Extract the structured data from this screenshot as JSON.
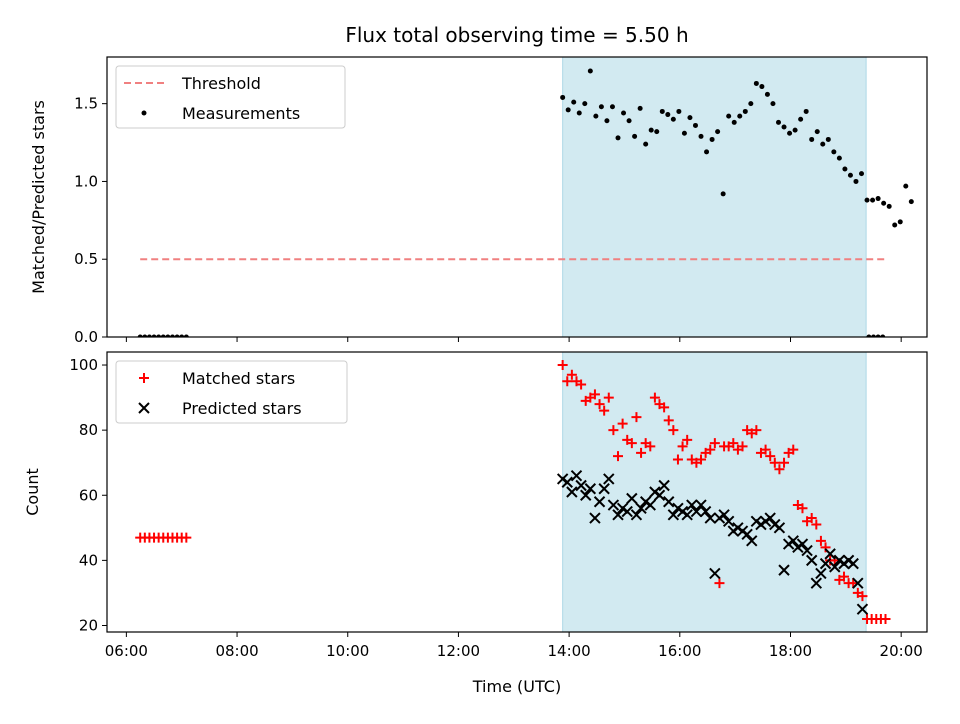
{
  "figure": {
    "title": "Flux total observing time = 5.50 h",
    "xlabel": "Time (UTC)",
    "x_ticks": [
      "06:00",
      "08:00",
      "10:00",
      "12:00",
      "14:00",
      "16:00",
      "18:00",
      "20:00"
    ]
  },
  "colors": {
    "threshold": "#f08080",
    "measurements": "#000000",
    "matched": "#ff0000",
    "predicted": "#000000",
    "observing_band": "#add8e6"
  },
  "chart_data": [
    {
      "type": "scatter",
      "ylabel": "Matched/Predicted stars",
      "ylim": [
        0,
        1.8
      ],
      "y_ticks": [
        "0.0",
        "0.5",
        "1.0",
        "1.5"
      ],
      "xlim": [
        "05:39",
        "20:28"
      ],
      "shaded_span": [
        "13:53",
        "19:22"
      ],
      "legend": {
        "position": "upper-left",
        "entries": [
          "Threshold",
          "Measurements"
        ]
      },
      "threshold": {
        "name": "Threshold",
        "value": 0.5,
        "x_start": "06:15",
        "x_end": "19:45"
      },
      "series": [
        {
          "name": "Measurements",
          "marker": "dot",
          "points": [
            [
              "06:15",
              0
            ],
            [
              "06:20",
              0
            ],
            [
              "06:25",
              0
            ],
            [
              "06:30",
              0
            ],
            [
              "06:35",
              0
            ],
            [
              "06:40",
              0
            ],
            [
              "06:45",
              0
            ],
            [
              "06:50",
              0
            ],
            [
              "06:55",
              0
            ],
            [
              "07:00",
              0
            ],
            [
              "07:05",
              0
            ],
            [
              "13:53",
              1.54
            ],
            [
              "13:59",
              1.46
            ],
            [
              "14:05",
              1.51
            ],
            [
              "14:11",
              1.44
            ],
            [
              "14:17",
              1.5
            ],
            [
              "14:23",
              1.71
            ],
            [
              "14:29",
              1.42
            ],
            [
              "14:35",
              1.48
            ],
            [
              "14:41",
              1.39
            ],
            [
              "14:47",
              1.48
            ],
            [
              "14:53",
              1.28
            ],
            [
              "14:59",
              1.44
            ],
            [
              "15:05",
              1.39
            ],
            [
              "15:11",
              1.29
            ],
            [
              "15:17",
              1.47
            ],
            [
              "15:23",
              1.24
            ],
            [
              "15:29",
              1.33
            ],
            [
              "15:35",
              1.32
            ],
            [
              "15:41",
              1.45
            ],
            [
              "15:47",
              1.43
            ],
            [
              "15:53",
              1.4
            ],
            [
              "15:59",
              1.45
            ],
            [
              "16:05",
              1.31
            ],
            [
              "16:11",
              1.41
            ],
            [
              "16:17",
              1.36
            ],
            [
              "16:23",
              1.29
            ],
            [
              "16:29",
              1.19
            ],
            [
              "16:35",
              1.27
            ],
            [
              "16:41",
              1.32
            ],
            [
              "16:47",
              0.92
            ],
            [
              "16:53",
              1.42
            ],
            [
              "16:59",
              1.38
            ],
            [
              "17:05",
              1.42
            ],
            [
              "17:11",
              1.45
            ],
            [
              "17:17",
              1.5
            ],
            [
              "17:23",
              1.63
            ],
            [
              "17:29",
              1.61
            ],
            [
              "17:35",
              1.56
            ],
            [
              "17:41",
              1.5
            ],
            [
              "17:47",
              1.38
            ],
            [
              "17:53",
              1.35
            ],
            [
              "17:59",
              1.31
            ],
            [
              "18:05",
              1.33
            ],
            [
              "18:11",
              1.4
            ],
            [
              "18:17",
              1.45
            ],
            [
              "18:23",
              1.27
            ],
            [
              "18:29",
              1.32
            ],
            [
              "18:35",
              1.24
            ],
            [
              "18:41",
              1.27
            ],
            [
              "18:47",
              1.19
            ],
            [
              "18:53",
              1.15
            ],
            [
              "18:59",
              1.08
            ],
            [
              "19:05",
              1.04
            ],
            [
              "19:11",
              1.0
            ],
            [
              "19:17",
              1.05
            ],
            [
              "19:23",
              0.88
            ],
            [
              "19:29",
              0.88
            ],
            [
              "19:35",
              0.89
            ],
            [
              "19:41",
              0.86
            ],
            [
              "19:47",
              0.84
            ],
            [
              "19:53",
              0.72
            ],
            [
              "19:59",
              0.74
            ],
            [
              "20:05",
              0.97
            ],
            [
              "20:11",
              0.87
            ],
            [
              "19:25",
              0
            ],
            [
              "19:30",
              0
            ],
            [
              "19:35",
              0
            ],
            [
              "19:40",
              0
            ]
          ]
        }
      ]
    },
    {
      "type": "scatter",
      "ylabel": "Count",
      "ylim": [
        18,
        104
      ],
      "y_ticks": [
        "20",
        "40",
        "60",
        "80",
        "100"
      ],
      "xlim": [
        "05:39",
        "20:28"
      ],
      "shaded_span": [
        "13:53",
        "19:22"
      ],
      "legend": {
        "position": "upper-left",
        "entries": [
          "Matched stars",
          "Predicted stars"
        ]
      },
      "series": [
        {
          "name": "Matched stars",
          "marker": "plus",
          "points": [
            [
              "06:15",
              47
            ],
            [
              "06:20",
              47
            ],
            [
              "06:25",
              47
            ],
            [
              "06:30",
              47
            ],
            [
              "06:35",
              47
            ],
            [
              "06:40",
              47
            ],
            [
              "06:45",
              47
            ],
            [
              "06:50",
              47
            ],
            [
              "06:55",
              47
            ],
            [
              "07:00",
              47
            ],
            [
              "07:05",
              47
            ],
            [
              "13:53",
              100
            ],
            [
              "13:58",
              95
            ],
            [
              "14:03",
              97
            ],
            [
              "14:08",
              95
            ],
            [
              "14:13",
              94
            ],
            [
              "14:18",
              89
            ],
            [
              "14:23",
              90
            ],
            [
              "14:28",
              91
            ],
            [
              "14:33",
              88
            ],
            [
              "14:38",
              86
            ],
            [
              "14:43",
              90
            ],
            [
              "14:48",
              80
            ],
            [
              "14:53",
              72
            ],
            [
              "14:58",
              82
            ],
            [
              "15:03",
              77
            ],
            [
              "15:08",
              76
            ],
            [
              "15:13",
              84
            ],
            [
              "15:18",
              73
            ],
            [
              "15:23",
              76
            ],
            [
              "15:28",
              75
            ],
            [
              "15:33",
              90
            ],
            [
              "15:38",
              88
            ],
            [
              "15:43",
              87
            ],
            [
              "15:48",
              83
            ],
            [
              "15:53",
              80
            ],
            [
              "15:58",
              71
            ],
            [
              "16:03",
              75
            ],
            [
              "16:08",
              77
            ],
            [
              "16:13",
              71
            ],
            [
              "16:18",
              70
            ],
            [
              "16:23",
              71
            ],
            [
              "16:28",
              73
            ],
            [
              "16:33",
              74
            ],
            [
              "16:38",
              76
            ],
            [
              "16:43",
              33
            ],
            [
              "16:48",
              75
            ],
            [
              "16:53",
              75
            ],
            [
              "16:58",
              76
            ],
            [
              "17:03",
              74
            ],
            [
              "17:08",
              75
            ],
            [
              "17:13",
              80
            ],
            [
              "17:18",
              79
            ],
            [
              "17:23",
              80
            ],
            [
              "17:28",
              73
            ],
            [
              "17:33",
              74
            ],
            [
              "17:38",
              72
            ],
            [
              "17:43",
              70
            ],
            [
              "17:48",
              68
            ],
            [
              "17:53",
              70
            ],
            [
              "17:58",
              73
            ],
            [
              "18:03",
              74
            ],
            [
              "18:08",
              57
            ],
            [
              "18:13",
              56
            ],
            [
              "18:18",
              52
            ],
            [
              "18:23",
              53
            ],
            [
              "18:28",
              51
            ],
            [
              "18:33",
              46
            ],
            [
              "18:38",
              44
            ],
            [
              "18:43",
              40
            ],
            [
              "18:48",
              40
            ],
            [
              "18:53",
              34
            ],
            [
              "18:58",
              35
            ],
            [
              "19:03",
              33
            ],
            [
              "19:08",
              33
            ],
            [
              "19:13",
              30
            ],
            [
              "19:18",
              29
            ],
            [
              "19:23",
              22
            ],
            [
              "19:28",
              22
            ],
            [
              "19:33",
              22
            ],
            [
              "19:38",
              22
            ],
            [
              "19:43",
              22
            ]
          ]
        },
        {
          "name": "Predicted stars",
          "marker": "x",
          "points": [
            [
              "13:53",
              65
            ],
            [
              "13:58",
              64
            ],
            [
              "14:03",
              61
            ],
            [
              "14:08",
              66
            ],
            [
              "14:13",
              63
            ],
            [
              "14:18",
              60
            ],
            [
              "14:23",
              62
            ],
            [
              "14:28",
              53
            ],
            [
              "14:33",
              58
            ],
            [
              "14:38",
              62
            ],
            [
              "14:43",
              65
            ],
            [
              "14:48",
              57
            ],
            [
              "14:53",
              54
            ],
            [
              "14:58",
              56
            ],
            [
              "15:03",
              55
            ],
            [
              "15:08",
              59
            ],
            [
              "15:13",
              54
            ],
            [
              "15:18",
              56
            ],
            [
              "15:23",
              58
            ],
            [
              "15:28",
              57
            ],
            [
              "15:33",
              61
            ],
            [
              "15:38",
              60
            ],
            [
              "15:43",
              63
            ],
            [
              "15:48",
              58
            ],
            [
              "15:53",
              54
            ],
            [
              "15:58",
              56
            ],
            [
              "16:03",
              55
            ],
            [
              "16:08",
              54
            ],
            [
              "16:13",
              57
            ],
            [
              "16:18",
              55
            ],
            [
              "16:23",
              57
            ],
            [
              "16:28",
              55
            ],
            [
              "16:33",
              53
            ],
            [
              "16:38",
              36
            ],
            [
              "16:43",
              53
            ],
            [
              "16:48",
              54
            ],
            [
              "16:53",
              52
            ],
            [
              "16:58",
              49
            ],
            [
              "17:03",
              50
            ],
            [
              "17:08",
              49
            ],
            [
              "17:13",
              48
            ],
            [
              "17:18",
              46
            ],
            [
              "17:23",
              52
            ],
            [
              "17:28",
              51
            ],
            [
              "17:33",
              52
            ],
            [
              "17:38",
              53
            ],
            [
              "17:43",
              51
            ],
            [
              "17:48",
              50
            ],
            [
              "17:53",
              37
            ],
            [
              "17:58",
              45
            ],
            [
              "18:03",
              46
            ],
            [
              "18:08",
              44
            ],
            [
              "18:13",
              45
            ],
            [
              "18:18",
              43
            ],
            [
              "18:23",
              40
            ],
            [
              "18:28",
              33
            ],
            [
              "18:33",
              36
            ],
            [
              "18:38",
              39
            ],
            [
              "18:43",
              42
            ],
            [
              "18:48",
              38
            ],
            [
              "18:53",
              40
            ],
            [
              "18:58",
              39
            ],
            [
              "19:03",
              40
            ],
            [
              "19:08",
              39
            ],
            [
              "19:13",
              33
            ],
            [
              "19:18",
              25
            ]
          ]
        }
      ]
    }
  ]
}
